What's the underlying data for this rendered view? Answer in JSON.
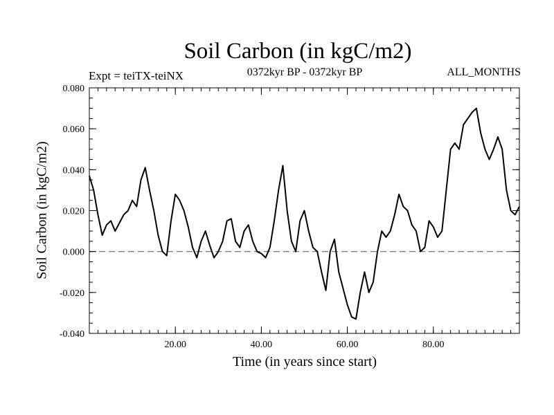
{
  "chart_data": {
    "type": "line",
    "title": "Soil Carbon (in kgC/m2)",
    "subtitle": "0372kyr BP - 0372kyr BP",
    "left_label": "Expt = teiTX-teiNX",
    "right_label": "ALL_MONTHS",
    "xlabel": "Time (in years since start)",
    "ylabel": "Soil Carbon (in kgC/m2)",
    "xlim": [
      0,
      100
    ],
    "ylim": [
      -0.04,
      0.08
    ],
    "xticks": [
      20,
      40,
      60,
      80
    ],
    "xtick_labels": [
      "20.00",
      "40.00",
      "60.00",
      "80.00"
    ],
    "yticks": [
      -0.04,
      -0.02,
      0.0,
      0.02,
      0.04,
      0.06,
      0.08
    ],
    "ytick_labels": [
      "-0.040",
      "-0.020",
      "0.000",
      "0.020",
      "0.040",
      "0.060",
      "0.080"
    ],
    "zero_line": "dashed",
    "colors": {
      "line": "#000000",
      "zero_line": "#666666"
    },
    "series": [
      {
        "name": "Soil Carbon",
        "x": [
          0,
          1,
          2,
          3,
          4,
          5,
          6,
          7,
          8,
          9,
          10,
          11,
          12,
          13,
          14,
          15,
          16,
          17,
          18,
          19,
          20,
          21,
          22,
          23,
          24,
          25,
          26,
          27,
          28,
          29,
          30,
          31,
          32,
          33,
          34,
          35,
          36,
          37,
          38,
          39,
          40,
          41,
          42,
          43,
          44,
          45,
          46,
          47,
          48,
          49,
          50,
          51,
          52,
          53,
          54,
          55,
          56,
          57,
          58,
          59,
          60,
          61,
          62,
          63,
          64,
          65,
          66,
          67,
          68,
          69,
          70,
          71,
          72,
          73,
          74,
          75,
          76,
          77,
          78,
          79,
          80,
          81,
          82,
          83,
          84,
          85,
          86,
          87,
          88,
          89,
          90,
          91,
          92,
          93,
          94,
          95,
          96,
          97,
          98,
          99,
          100
        ],
        "values": [
          0.037,
          0.03,
          0.018,
          0.008,
          0.013,
          0.015,
          0.01,
          0.014,
          0.018,
          0.02,
          0.025,
          0.022,
          0.035,
          0.041,
          0.03,
          0.02,
          0.008,
          0.0,
          -0.002,
          0.015,
          0.028,
          0.025,
          0.02,
          0.012,
          0.002,
          -0.003,
          0.005,
          0.01,
          0.003,
          -0.003,
          0.0,
          0.005,
          0.015,
          0.016,
          0.005,
          0.002,
          0.01,
          0.013,
          0.005,
          0.0,
          -0.001,
          -0.003,
          0.002,
          0.015,
          0.03,
          0.042,
          0.02,
          0.005,
          0.0,
          0.015,
          0.02,
          0.01,
          0.002,
          0.0,
          -0.01,
          -0.019,
          0.0,
          0.006,
          -0.01,
          -0.018,
          -0.026,
          -0.032,
          -0.033,
          -0.02,
          -0.01,
          -0.02,
          -0.015,
          0.0,
          0.01,
          0.007,
          0.01,
          0.018,
          0.028,
          0.022,
          0.02,
          0.013,
          0.01,
          0.0,
          0.002,
          0.015,
          0.012,
          0.007,
          0.01,
          0.03,
          0.05,
          0.053,
          0.05,
          0.062,
          0.065,
          0.068,
          0.07,
          0.058,
          0.05,
          0.045,
          0.05,
          0.056,
          0.05,
          0.03,
          0.02,
          0.018,
          0.022
        ]
      }
    ]
  }
}
